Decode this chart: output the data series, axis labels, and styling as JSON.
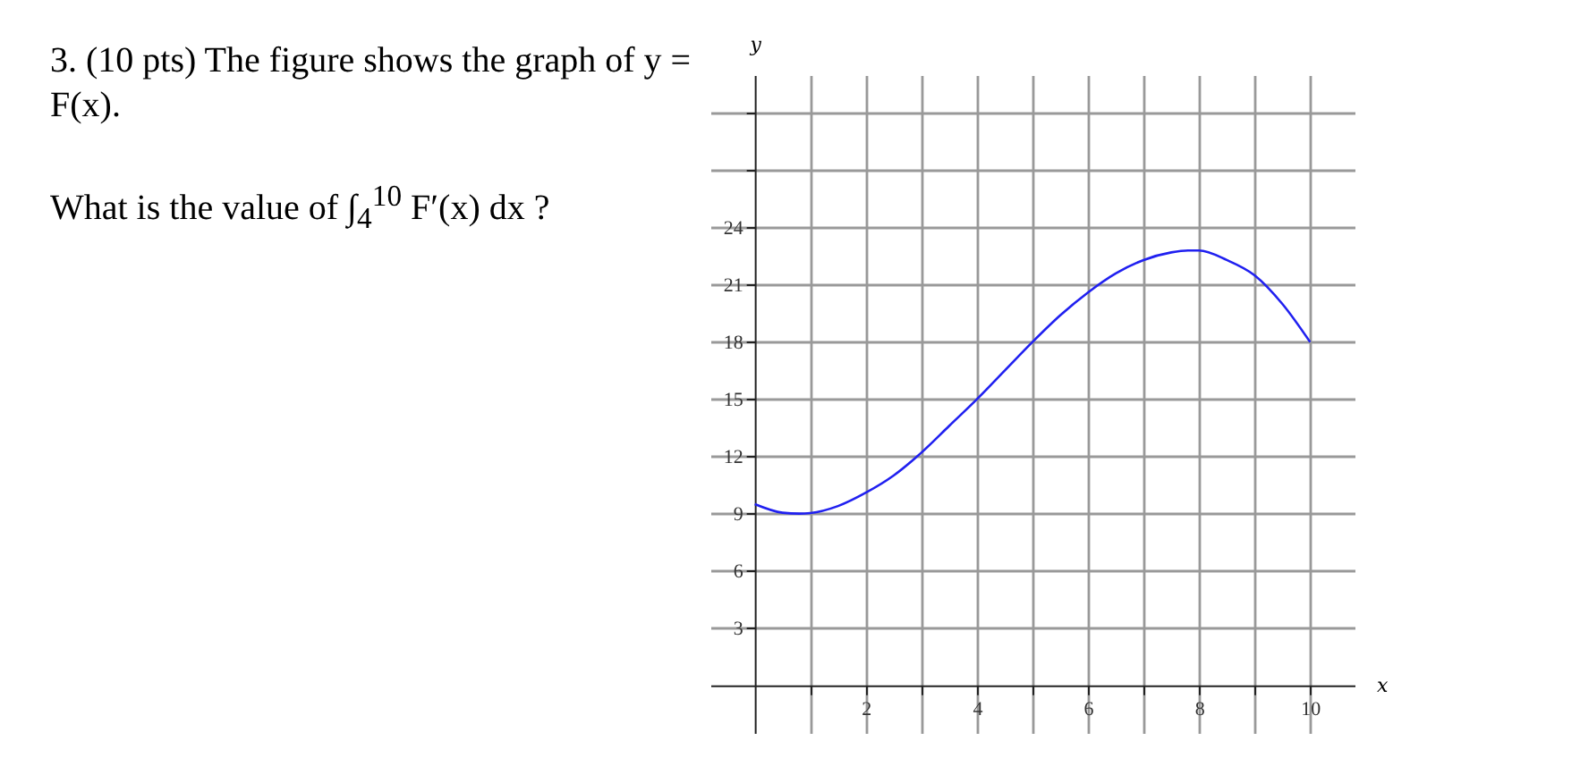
{
  "chart_data": {
    "type": "line",
    "xlabel": "x",
    "ylabel": "y",
    "annotations": [
      "3. (10 pts) The figure shows the graph of y = F(x).",
      "What is the value of ∫$_{4}$$^{10}$ F′(x) dx ?"
    ],
    "x": [
      0,
      0.5,
      0.8,
      1,
      1.5,
      2,
      2.5,
      3,
      3.5,
      4,
      4.5,
      5,
      5.5,
      6,
      6.5,
      7,
      7.5,
      7.8,
      8,
      8.5,
      9,
      9.5,
      10
    ],
    "series": [
      {
        "color": "#2020f0",
        "values": [
          9.5,
          9.05,
          9,
          9.03,
          9.4,
          10.1,
          11,
          12.2,
          13.6,
          15,
          16.5,
          18,
          19.4,
          20.6,
          21.6,
          22.3,
          22.7,
          22.8,
          22.8,
          22.3,
          21.5,
          20,
          18
        ]
      }
    ],
    "xlim": [
      -0.8,
      10.8
    ],
    "ylim": [
      -2.5,
      32
    ],
    "xticks": [
      {
        "value": 1,
        "label": null
      },
      2,
      {
        "value": 3,
        "label": null
      },
      4,
      {
        "value": 5,
        "label": null
      },
      6,
      {
        "value": 7,
        "label": null
      },
      8,
      {
        "value": 9,
        "label": null
      },
      10
    ],
    "yticks": [
      3,
      6,
      9,
      12,
      15,
      18,
      21,
      24,
      {
        "value": 27,
        "label": null
      },
      {
        "value": 30,
        "label": null
      }
    ],
    "grid": true
  }
}
